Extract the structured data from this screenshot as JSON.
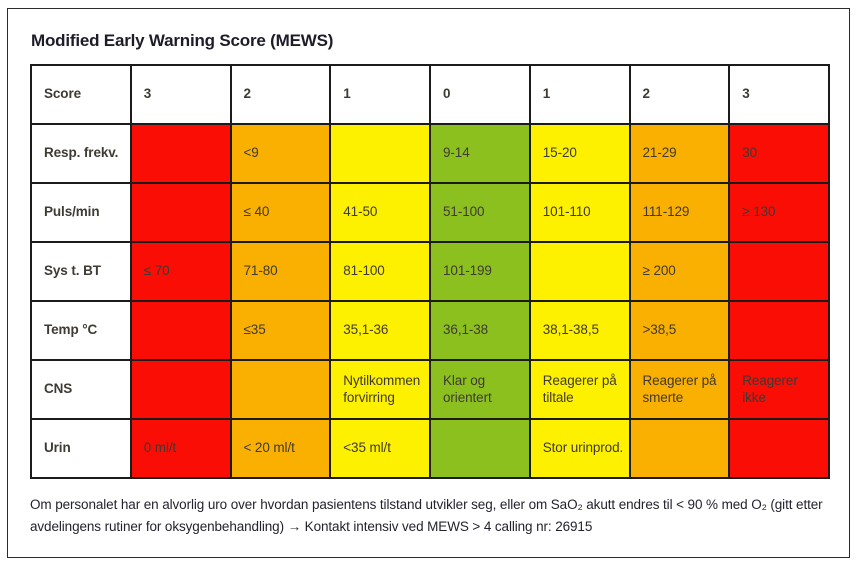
{
  "title": "Modified Early Warning Score (MEWS)",
  "colors": {
    "red": "#f90d05",
    "orange": "#f9b000",
    "yellow": "#fdf100",
    "green": "#8cc01f",
    "red_text": "#7c1208",
    "grid": "#1b1b1b"
  },
  "table": {
    "header": [
      "Score",
      "3",
      "2",
      "1",
      "0",
      "1",
      "2",
      "3"
    ],
    "rows": [
      {
        "label": "Resp. frekv.",
        "cells": [
          {
            "color": "red",
            "text": ""
          },
          {
            "color": "orange",
            "text": "<9"
          },
          {
            "color": "yellow",
            "text": ""
          },
          {
            "color": "green",
            "text": "9-14"
          },
          {
            "color": "yellow",
            "text": "15-20"
          },
          {
            "color": "orange",
            "text": "21-29"
          },
          {
            "color": "red",
            "text": "30"
          }
        ]
      },
      {
        "label": "Puls/min",
        "cells": [
          {
            "color": "red",
            "text": ""
          },
          {
            "color": "orange",
            "text": "≤ 40"
          },
          {
            "color": "yellow",
            "text": "41-50"
          },
          {
            "color": "green",
            "text": "51-100"
          },
          {
            "color": "yellow",
            "text": "101-110"
          },
          {
            "color": "orange",
            "text": "111-129"
          },
          {
            "color": "red",
            "text": "≥ 130"
          }
        ]
      },
      {
        "label": "Sys t. BT",
        "cells": [
          {
            "color": "red",
            "text": "≤ 70"
          },
          {
            "color": "orange",
            "text": "71-80"
          },
          {
            "color": "yellow",
            "text": "81-100"
          },
          {
            "color": "green",
            "text": "101-199"
          },
          {
            "color": "yellow",
            "text": ""
          },
          {
            "color": "orange",
            "text": "≥ 200"
          },
          {
            "color": "red",
            "text": ""
          }
        ]
      },
      {
        "label": "Temp °C",
        "cells": [
          {
            "color": "red",
            "text": ""
          },
          {
            "color": "orange",
            "text": "≤35"
          },
          {
            "color": "yellow",
            "text": "35,1-36"
          },
          {
            "color": "green",
            "text": "36,1-38"
          },
          {
            "color": "yellow",
            "text": "38,1-38,5"
          },
          {
            "color": "orange",
            "text": ">38,5"
          },
          {
            "color": "red",
            "text": ""
          }
        ]
      },
      {
        "label": "CNS",
        "cells": [
          {
            "color": "red",
            "text": ""
          },
          {
            "color": "orange",
            "text": ""
          },
          {
            "color": "yellow",
            "text": "Nytilkommen forvirring"
          },
          {
            "color": "green",
            "text": "Klar og orientert"
          },
          {
            "color": "yellow",
            "text": "Reagerer på tiltale"
          },
          {
            "color": "orange",
            "text": "Reagerer på smerte"
          },
          {
            "color": "red",
            "text": "Reagerer ikke"
          }
        ]
      },
      {
        "label": "Urin",
        "cells": [
          {
            "color": "red",
            "text": "0 ml/t"
          },
          {
            "color": "orange",
            "text": "< 20 ml/t"
          },
          {
            "color": "yellow",
            "text": "<35 ml/t"
          },
          {
            "color": "green",
            "text": ""
          },
          {
            "color": "yellow",
            "text": "Stor urinprod."
          },
          {
            "color": "orange",
            "text": ""
          },
          {
            "color": "red",
            "text": ""
          }
        ]
      }
    ]
  },
  "footer": {
    "line1": "Om personalet har en alvorlig uro over hvordan pasientens tilstand utvikler seg, eller om SaO₂  akutt endres til < 90 % med O₂ (gitt etter",
    "line2": "avdelingens rutiner for oksygenbehandling) → Kontakt intensiv ved MEWS > 4 calling nr: 26915"
  }
}
